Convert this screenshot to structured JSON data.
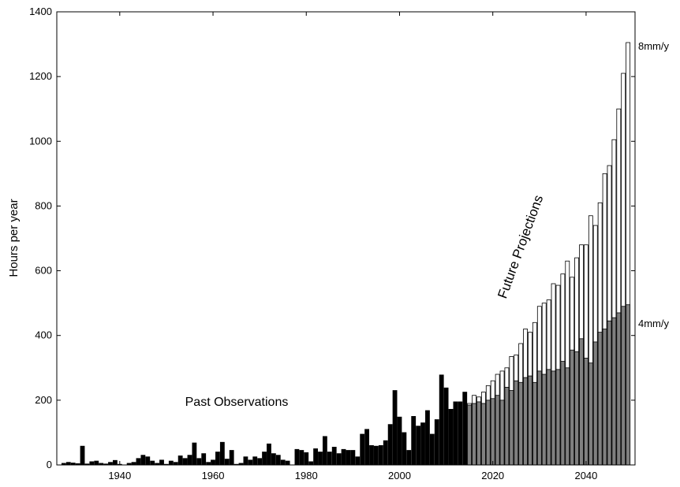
{
  "chart_data": {
    "type": "bar",
    "y_label": "Hours per year",
    "annotations": [
      "Future Projections"
    ],
    "xlim": [
      1926.5,
      2050.5
    ],
    "xticks": [
      1940,
      1960,
      1980,
      2000,
      2020,
      2040
    ],
    "ylim": [
      0,
      1400
    ],
    "yticks": [
      0,
      200,
      400,
      600,
      800,
      1000,
      1200,
      1400
    ],
    "series": [
      {
        "name": "Past Observations",
        "color": "#000000",
        "x": [
          1928,
          1929,
          1930,
          1931,
          1932,
          1933,
          1934,
          1935,
          1936,
          1937,
          1938,
          1939,
          1940,
          1941,
          1942,
          1943,
          1944,
          1945,
          1946,
          1947,
          1948,
          1949,
          1950,
          1951,
          1952,
          1953,
          1954,
          1955,
          1956,
          1957,
          1958,
          1959,
          1960,
          1961,
          1962,
          1963,
          1964,
          1965,
          1966,
          1967,
          1968,
          1969,
          1970,
          1971,
          1972,
          1973,
          1974,
          1975,
          1976,
          1977,
          1978,
          1979,
          1980,
          1981,
          1982,
          1983,
          1984,
          1985,
          1986,
          1987,
          1988,
          1989,
          1990,
          1991,
          1992,
          1993,
          1994,
          1995,
          1996,
          1997,
          1998,
          1999,
          2000,
          2001,
          2002,
          2003,
          2004,
          2005,
          2006,
          2007,
          2008,
          2009,
          2010,
          2011,
          2012,
          2013,
          2014
        ],
        "values": [
          5,
          8,
          6,
          4,
          58,
          3,
          10,
          12,
          5,
          3,
          8,
          14,
          2,
          0,
          5,
          8,
          20,
          30,
          25,
          12,
          5,
          15,
          2,
          12,
          8,
          28,
          20,
          30,
          68,
          20,
          35,
          8,
          15,
          40,
          70,
          18,
          45,
          2,
          5,
          25,
          15,
          25,
          20,
          40,
          65,
          35,
          30,
          15,
          12,
          0,
          48,
          45,
          38,
          10,
          50,
          40,
          88,
          40,
          55,
          35,
          48,
          45,
          45,
          25,
          95,
          110,
          60,
          58,
          60,
          75,
          125,
          230,
          148,
          100,
          45,
          150,
          120,
          130,
          168,
          95,
          140,
          278,
          238,
          172,
          195,
          195,
          225
        ]
      },
      {
        "name": "8mm/y",
        "color": "#ffffff",
        "x": [
          2015,
          2016,
          2017,
          2018,
          2019,
          2020,
          2021,
          2022,
          2023,
          2024,
          2025,
          2026,
          2027,
          2028,
          2029,
          2030,
          2031,
          2032,
          2033,
          2034,
          2035,
          2036,
          2037,
          2038,
          2039,
          2040,
          2041,
          2042,
          2043,
          2044,
          2045,
          2046,
          2047,
          2048,
          2049
        ],
        "values": [
          190,
          215,
          210,
          225,
          245,
          260,
          280,
          290,
          300,
          335,
          340,
          375,
          420,
          410,
          440,
          490,
          500,
          510,
          560,
          555,
          590,
          630,
          580,
          640,
          680,
          680,
          770,
          740,
          810,
          900,
          925,
          1005,
          1100,
          1210,
          1305
        ]
      },
      {
        "name": "4mm/y",
        "color": "#808080",
        "x": [
          2015,
          2016,
          2017,
          2018,
          2019,
          2020,
          2021,
          2022,
          2023,
          2024,
          2025,
          2026,
          2027,
          2028,
          2029,
          2030,
          2031,
          2032,
          2033,
          2034,
          2035,
          2036,
          2037,
          2038,
          2039,
          2040,
          2041,
          2042,
          2043,
          2044,
          2045,
          2046,
          2047,
          2048,
          2049
        ],
        "values": [
          185,
          190,
          195,
          190,
          200,
          205,
          215,
          200,
          240,
          230,
          260,
          255,
          270,
          275,
          255,
          290,
          280,
          295,
          290,
          295,
          320,
          300,
          355,
          350,
          390,
          330,
          315,
          380,
          410,
          420,
          445,
          455,
          470,
          490,
          495
        ]
      }
    ]
  }
}
